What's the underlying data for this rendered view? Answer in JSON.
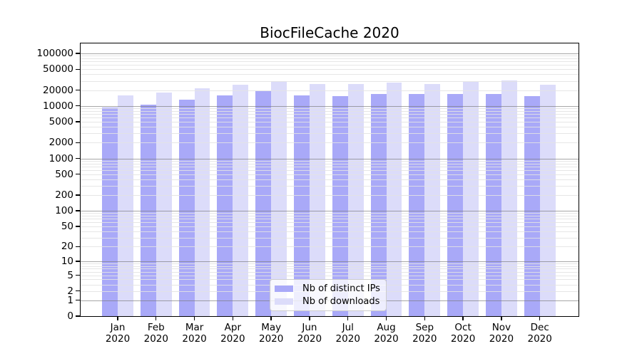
{
  "title": "BiocFileCache 2020",
  "chart_data": {
    "type": "bar",
    "title": "BiocFileCache 2020",
    "categories": [
      "Jan",
      "Feb",
      "Mar",
      "Apr",
      "May",
      "Jun",
      "Jul",
      "Aug",
      "Sep",
      "Oct",
      "Nov",
      "Dec"
    ],
    "x_year": "2020",
    "series": [
      {
        "name": "Nb of distinct IPs",
        "color": "#a9a9f8",
        "values": [
          9400,
          10600,
          13200,
          15700,
          19000,
          15700,
          15400,
          17100,
          16800,
          17100,
          17100,
          15500
        ]
      },
      {
        "name": "Nb of downloads",
        "color": "#dcdcfa",
        "values": [
          16000,
          18000,
          21500,
          25400,
          29300,
          25900,
          26400,
          27800,
          26100,
          29000,
          30300,
          25100
        ]
      }
    ],
    "y_scale": "log1p",
    "ylim": [
      0,
      160000
    ],
    "y_tick_labels": [
      "0",
      "1",
      "2",
      "5",
      "10",
      "20",
      "50",
      "100",
      "200",
      "500",
      "1000",
      "2000",
      "5000",
      "10000",
      "20000",
      "50000",
      "100000"
    ],
    "y_tick_values": [
      0,
      1,
      2,
      5,
      10,
      20,
      50,
      100,
      200,
      500,
      1000,
      2000,
      5000,
      10000,
      20000,
      50000,
      100000
    ],
    "grid": "horizontal, minor light gray, decade lines darker gray drawn over bars",
    "legend_position": "lower center",
    "background": "#ffffff",
    "axis_color": "#000000",
    "major_grid_color": "#a7a7a7",
    "minor_grid_color": "#e6e6e6"
  }
}
